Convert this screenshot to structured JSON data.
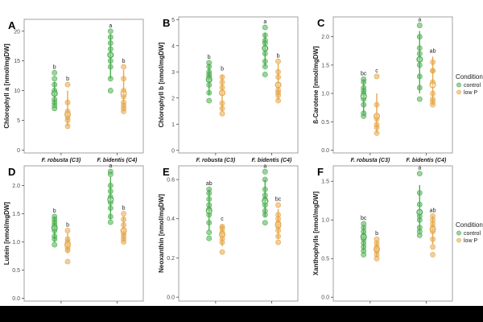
{
  "chart_data": [
    {
      "id": "A",
      "type": "scatter",
      "ylabel": "Chlorophyll a [nmol/mgDW]",
      "ylim": [
        -0.5,
        22
      ],
      "yticks": [
        0,
        5,
        10,
        15,
        20
      ],
      "categories": [
        "F. robusta (C3)",
        "F. bidentis (C4)"
      ],
      "series": [
        {
          "name": "control",
          "values": [
            [
              7,
              7.5,
              8,
              8.5,
              9.5,
              10,
              11,
              12,
              13
            ],
            [
              10,
              12,
              14,
              15,
              16,
              17,
              18,
              19,
              20
            ]
          ],
          "mean": [
            9.5,
            16
          ],
          "ci": [
            [
              7.5,
              11.5
            ],
            [
              12,
              19.5
            ]
          ],
          "letters": [
            "b",
            "a"
          ]
        },
        {
          "name": "low P",
          "values": [
            [
              4,
              5,
              5.5,
              6,
              6.5,
              8,
              11
            ],
            [
              6.5,
              7,
              7.5,
              8,
              9,
              10,
              12,
              14
            ]
          ],
          "mean": [
            6,
            9.5
          ],
          "ci": [
            [
              4,
              10
            ],
            [
              6.5,
              13.5
            ]
          ],
          "letters": [
            "b",
            "b"
          ]
        }
      ]
    },
    {
      "id": "B",
      "type": "scatter",
      "ylabel": "Chlorophyll b [nmol/mgDW]",
      "ylim": [
        -0.1,
        5.1
      ],
      "yticks": [
        0,
        1,
        2,
        3,
        4,
        5
      ],
      "categories": [
        "F. robusta (C3)",
        "F. bidentis (C4)"
      ],
      "series": [
        {
          "name": "control",
          "values": [
            [
              1.9,
              2.2,
              2.5,
              2.7,
              2.8,
              2.9,
              3.0,
              3.2,
              3.35
            ],
            [
              2.9,
              3.2,
              3.4,
              3.7,
              3.9,
              4.1,
              4.2,
              4.4,
              4.7
            ]
          ],
          "mean": [
            2.7,
            3.9
          ],
          "ci": [
            [
              2.1,
              3.3
            ],
            [
              3.2,
              4.5
            ]
          ],
          "letters": [
            "b",
            "a"
          ]
        },
        {
          "name": "low P",
          "values": [
            [
              1.4,
              1.6,
              1.8,
              2.2,
              2.4,
              2.6,
              2.8
            ],
            [
              1.9,
              2.1,
              2.2,
              2.3,
              2.5,
              2.8,
              3.0,
              3.4
            ]
          ],
          "mean": [
            2.2,
            2.5
          ],
          "ci": [
            [
              1.5,
              2.9
            ],
            [
              1.9,
              3.3
            ]
          ],
          "letters": [
            "b",
            "b"
          ]
        }
      ]
    },
    {
      "id": "C",
      "type": "scatter",
      "ylabel": "ß-Carotene [nmol/mgDW]",
      "ylim": [
        -0.05,
        2.35
      ],
      "yticks": [
        0.0,
        0.5,
        1.0,
        1.5,
        2.0
      ],
      "categories": [
        "F. robusta (C3)",
        "F. bidentis (C4)"
      ],
      "series": [
        {
          "name": "control",
          "values": [
            [
              0.6,
              0.65,
              0.8,
              0.9,
              1.0,
              1.05,
              1.1,
              1.2,
              1.25
            ],
            [
              0.9,
              1.1,
              1.3,
              1.5,
              1.6,
              1.7,
              1.8,
              2.0,
              2.2
            ]
          ],
          "mean": [
            0.95,
            1.6
          ],
          "ci": [
            [
              0.65,
              1.25
            ],
            [
              1.0,
              2.1
            ]
          ],
          "letters": [
            "bc",
            "a"
          ]
        },
        {
          "name": "low P",
          "values": [
            [
              0.3,
              0.4,
              0.45,
              0.55,
              0.6,
              0.8,
              1.3
            ],
            [
              0.8,
              0.85,
              0.9,
              1.0,
              1.2,
              1.4,
              1.4,
              1.55
            ]
          ],
          "mean": [
            0.6,
            1.15
          ],
          "ci": [
            [
              0.3,
              1.0
            ],
            [
              0.8,
              1.65
            ]
          ],
          "letters": [
            "c",
            "ab"
          ]
        }
      ]
    },
    {
      "id": "D",
      "type": "scatter",
      "ylabel": "Lutein [nmol/mgDW]",
      "ylim": [
        -0.05,
        2.35
      ],
      "yticks": [
        0.0,
        0.5,
        1.0,
        1.5,
        2.0
      ],
      "categories": [
        "F. robusta (C3)",
        "F. bidentis (C4)"
      ],
      "series": [
        {
          "name": "control",
          "values": [
            [
              0.95,
              1.05,
              1.1,
              1.2,
              1.25,
              1.3,
              1.35,
              1.4,
              1.45
            ],
            [
              1.35,
              1.45,
              1.6,
              1.7,
              1.8,
              1.9,
              2.0,
              2.2,
              2.25
            ]
          ],
          "mean": [
            1.25,
            1.75
          ],
          "ci": [
            [
              1.0,
              1.45
            ],
            [
              1.4,
              2.15
            ]
          ],
          "letters": [
            "b",
            "a"
          ]
        },
        {
          "name": "low P",
          "values": [
            [
              0.65,
              0.85,
              0.9,
              0.95,
              1.0,
              1.05,
              1.2
            ],
            [
              1.0,
              1.05,
              1.1,
              1.15,
              1.2,
              1.3,
              1.4,
              1.5
            ]
          ],
          "mean": [
            0.95,
            1.2
          ],
          "ci": [
            [
              0.8,
              1.15
            ],
            [
              1.0,
              1.45
            ]
          ],
          "letters": [
            "b",
            "b"
          ]
        }
      ]
    },
    {
      "id": "E",
      "type": "scatter",
      "ylabel": "Neoxanthin [nmol/mgDW]",
      "ylim": [
        -0.02,
        0.67
      ],
      "yticks": [
        0.0,
        0.2,
        0.4,
        0.6
      ],
      "categories": [
        "F. robusta (C3)",
        "F. bidentis (C4)"
      ],
      "series": [
        {
          "name": "control",
          "values": [
            [
              0.3,
              0.33,
              0.38,
              0.42,
              0.45,
              0.47,
              0.5,
              0.53,
              0.55
            ],
            [
              0.38,
              0.42,
              0.44,
              0.47,
              0.5,
              0.52,
              0.55,
              0.6,
              0.64
            ]
          ],
          "mean": [
            0.44,
            0.49
          ],
          "ci": [
            [
              0.34,
              0.55
            ],
            [
              0.41,
              0.6
            ]
          ],
          "letters": [
            "ab",
            "a"
          ]
        },
        {
          "name": "low P",
          "values": [
            [
              0.23,
              0.28,
              0.3,
              0.32,
              0.33,
              0.35,
              0.36
            ],
            [
              0.28,
              0.31,
              0.34,
              0.36,
              0.38,
              0.4,
              0.42,
              0.47
            ]
          ],
          "mean": [
            0.32,
            0.37
          ],
          "ci": [
            [
              0.26,
              0.37
            ],
            [
              0.3,
              0.45
            ]
          ],
          "letters": [
            "c",
            "bc"
          ]
        }
      ]
    },
    {
      "id": "F",
      "type": "scatter",
      "ylabel": "Xanthophylls [nmol/mgDW]",
      "ylim": [
        -0.05,
        1.7
      ],
      "yticks": [
        0.0,
        0.5,
        1.0,
        1.5
      ],
      "categories": [
        "F. robusta (C3)",
        "F. bidentis (C4)"
      ],
      "series": [
        {
          "name": "control",
          "values": [
            [
              0.55,
              0.6,
              0.65,
              0.7,
              0.75,
              0.8,
              0.85,
              0.9,
              0.95
            ],
            [
              0.8,
              0.85,
              0.9,
              1.0,
              1.05,
              1.1,
              1.2,
              1.35,
              1.6
            ]
          ],
          "mean": [
            0.78,
            1.1
          ],
          "ci": [
            [
              0.6,
              0.92
            ],
            [
              0.85,
              1.45
            ]
          ],
          "letters": [
            "bc",
            "a"
          ]
        },
        {
          "name": "low P",
          "values": [
            [
              0.5,
              0.55,
              0.6,
              0.62,
              0.65,
              0.7,
              0.75
            ],
            [
              0.55,
              0.65,
              0.75,
              0.85,
              0.9,
              0.95,
              1.0,
              1.05
            ]
          ],
          "mean": [
            0.62,
            0.88
          ],
          "ci": [
            [
              0.52,
              0.72
            ],
            [
              0.68,
              1.05
            ]
          ],
          "letters": [
            "b",
            "ab"
          ]
        }
      ]
    }
  ],
  "legend": {
    "title": "Condition",
    "entries": [
      {
        "label": "control",
        "color": "#4caf50"
      },
      {
        "label": "low P",
        "color": "#e6a84a"
      }
    ]
  },
  "colors": {
    "control": "#4caf50",
    "low_p": "#e6a84a"
  }
}
